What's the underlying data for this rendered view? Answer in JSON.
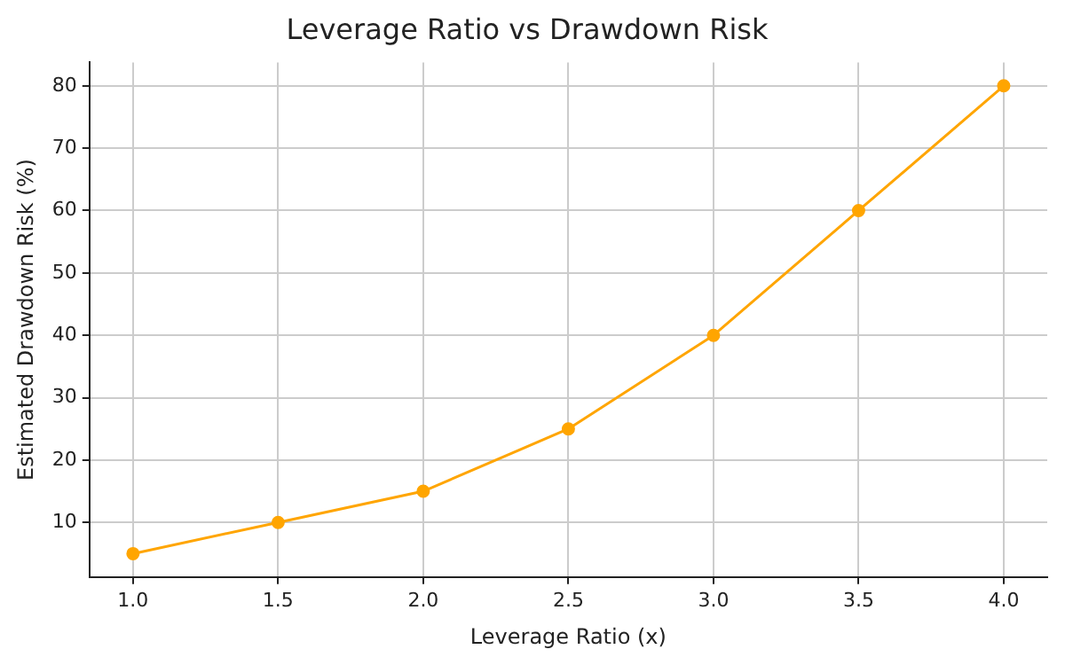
{
  "chart_data": {
    "type": "line",
    "title": "Leverage Ratio vs Drawdown Risk",
    "xlabel": "Leverage Ratio (x)",
    "ylabel": "Estimated Drawdown Risk (%)",
    "x": [
      1.0,
      1.5,
      2.0,
      2.5,
      3.0,
      3.5,
      4.0
    ],
    "series": [
      {
        "color": "#ffa500",
        "values": [
          5,
          10,
          15,
          25,
          40,
          60,
          80
        ]
      }
    ],
    "xlim": [
      0.85,
      4.15
    ],
    "ylim": [
      1.25,
      83.75
    ],
    "xticks": [
      {
        "value": 1,
        "label": "1.0"
      },
      {
        "value": 1.5,
        "label": "1.5"
      },
      {
        "value": 2,
        "label": "2.0"
      },
      {
        "value": 2.5,
        "label": "2.5"
      },
      {
        "value": 3,
        "label": "3.0"
      },
      {
        "value": 3.5,
        "label": "3.5"
      },
      {
        "value": 4,
        "label": "4.0"
      }
    ],
    "yticks": [
      10,
      20,
      30,
      40,
      50,
      60,
      70,
      80
    ],
    "grid": true,
    "marker": "circle",
    "line_style": "solid",
    "legend": false
  }
}
